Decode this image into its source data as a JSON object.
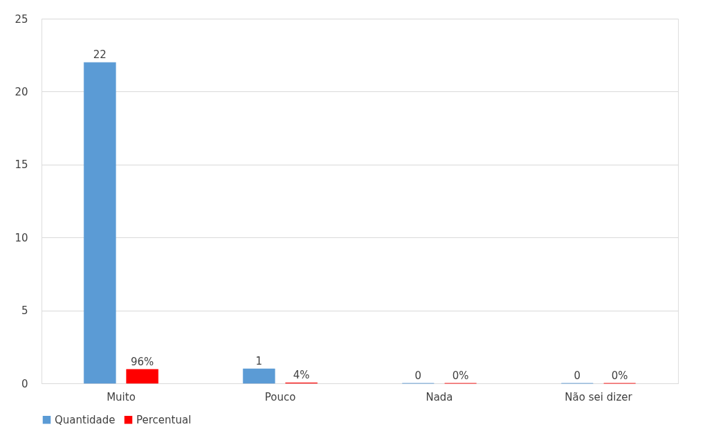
{
  "chart_data": {
    "type": "bar",
    "categories": [
      "Muito",
      "Pouco",
      "Nada",
      "Não sei dizer"
    ],
    "series": [
      {
        "name": "Quantidade",
        "color": "#5b9bd5",
        "values": [
          22,
          1,
          0,
          0
        ],
        "value_labels": [
          "22",
          "1",
          "0",
          "0"
        ]
      },
      {
        "name": "Percentual",
        "color": "#ff0000",
        "values": [
          0.96,
          0.04,
          0,
          0
        ],
        "value_labels": [
          "96%",
          "4%",
          "0%",
          "0%"
        ]
      }
    ],
    "ylim": [
      0,
      25
    ],
    "yticks": [
      0,
      5,
      10,
      15,
      20,
      25
    ],
    "grid": "y",
    "legend": "bottom"
  }
}
